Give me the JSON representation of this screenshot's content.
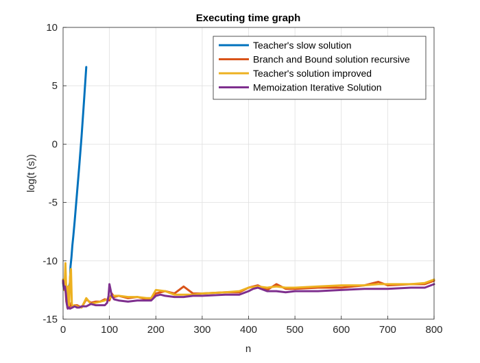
{
  "chart_data": {
    "type": "line",
    "title": "Executing time graph",
    "xlabel": "n",
    "ylabel": "log(t (s))",
    "xlim": [
      0,
      800
    ],
    "ylim": [
      -15,
      10
    ],
    "xticks": [
      0,
      100,
      200,
      300,
      400,
      500,
      600,
      700,
      800
    ],
    "yticks": [
      -15,
      -10,
      -5,
      0,
      5,
      10
    ],
    "grid": true,
    "legend": "top-right",
    "series": [
      {
        "name": "Teacher's slow solution",
        "color": "#0072BD",
        "x": [
          0,
          2,
          4,
          6,
          8,
          10,
          12,
          14,
          15,
          16,
          18,
          20,
          22,
          25,
          30,
          35,
          40,
          45,
          50
        ],
        "y": [
          -11.9,
          -12.5,
          -12.5,
          -12.4,
          -12.6,
          -12.6,
          -12.3,
          -12.0,
          -11.8,
          -10.5,
          -9.7,
          -8.7,
          -7.9,
          -6.6,
          -4.2,
          -1.8,
          0.7,
          3.6,
          6.6
        ]
      },
      {
        "name": "Branch and Bound solution recursive",
        "color": "#D95319",
        "x": [
          0,
          3,
          5,
          7,
          9,
          12,
          15,
          18,
          20,
          25,
          30,
          40,
          50,
          60,
          70,
          80,
          90,
          100,
          105,
          110,
          120,
          140,
          160,
          180,
          190,
          200,
          220,
          240,
          260,
          280,
          300,
          350,
          380,
          400,
          420,
          440,
          460,
          480,
          500,
          550,
          600,
          650,
          680,
          700,
          750,
          780,
          800
        ],
        "y": [
          -11.8,
          -12.5,
          -12.4,
          -13.5,
          -13.8,
          -13.7,
          -13.9,
          -13.6,
          -13.9,
          -13.8,
          -13.8,
          -14.0,
          -13.3,
          -13.6,
          -13.5,
          -13.5,
          -13.3,
          -13.4,
          -12.8,
          -13.1,
          -13.0,
          -13.2,
          -13.1,
          -13.3,
          -13.3,
          -12.8,
          -12.6,
          -12.8,
          -12.2,
          -12.8,
          -12.8,
          -12.7,
          -12.7,
          -12.3,
          -12.1,
          -12.5,
          -12.0,
          -12.4,
          -12.4,
          -12.3,
          -12.3,
          -12.1,
          -11.8,
          -12.1,
          -12.0,
          -12.0,
          -11.7
        ]
      },
      {
        "name": "Teacher's solution improved",
        "color": "#EDB120",
        "x": [
          0,
          3,
          5,
          7,
          9,
          11,
          13,
          15,
          17,
          19,
          21,
          25,
          30,
          40,
          50,
          60,
          70,
          80,
          90,
          100,
          110,
          120,
          140,
          160,
          180,
          190,
          200,
          220,
          240,
          260,
          280,
          300,
          350,
          380,
          400,
          420,
          440,
          460,
          480,
          500,
          550,
          600,
          650,
          680,
          700,
          750,
          780,
          800
        ],
        "y": [
          -11.6,
          -12.5,
          -10.2,
          -12.6,
          -14.0,
          -12.2,
          -13.8,
          -11.4,
          -10.7,
          -13.7,
          -13.9,
          -13.8,
          -13.9,
          -14.0,
          -13.2,
          -13.7,
          -13.6,
          -13.5,
          -13.4,
          -13.2,
          -13.0,
          -13.0,
          -13.1,
          -13.1,
          -13.2,
          -13.2,
          -12.5,
          -12.6,
          -12.9,
          -12.9,
          -12.9,
          -12.8,
          -12.7,
          -12.6,
          -12.3,
          -12.2,
          -12.3,
          -12.2,
          -12.3,
          -12.3,
          -12.2,
          -12.1,
          -12.1,
          -12.0,
          -12.0,
          -12.0,
          -11.9,
          -11.6
        ]
      },
      {
        "name": "Memoization Iterative Solution",
        "color": "#7E2F8E",
        "x": [
          0,
          2,
          4,
          6,
          8,
          10,
          12,
          15,
          20,
          25,
          30,
          35,
          40,
          50,
          60,
          70,
          80,
          90,
          95,
          98,
          100,
          102,
          105,
          110,
          120,
          140,
          160,
          180,
          190,
          200,
          210,
          220,
          240,
          260,
          280,
          300,
          350,
          380,
          400,
          410,
          420,
          440,
          460,
          480,
          500,
          550,
          600,
          650,
          700,
          750,
          780,
          800
        ],
        "y": [
          -11.7,
          -12.4,
          -12.2,
          -12.8,
          -13.7,
          -14.1,
          -14.0,
          -14.1,
          -14.0,
          -13.9,
          -14.0,
          -14.0,
          -13.9,
          -13.9,
          -13.7,
          -13.8,
          -13.8,
          -13.8,
          -13.6,
          -13.0,
          -12.0,
          -12.4,
          -13.0,
          -13.3,
          -13.4,
          -13.5,
          -13.4,
          -13.4,
          -13.4,
          -13.0,
          -12.9,
          -13.0,
          -13.1,
          -13.1,
          -13.0,
          -13.0,
          -12.9,
          -12.9,
          -12.6,
          -12.4,
          -12.3,
          -12.6,
          -12.6,
          -12.7,
          -12.6,
          -12.6,
          -12.5,
          -12.4,
          -12.4,
          -12.3,
          -12.3,
          -12.0
        ]
      }
    ]
  }
}
